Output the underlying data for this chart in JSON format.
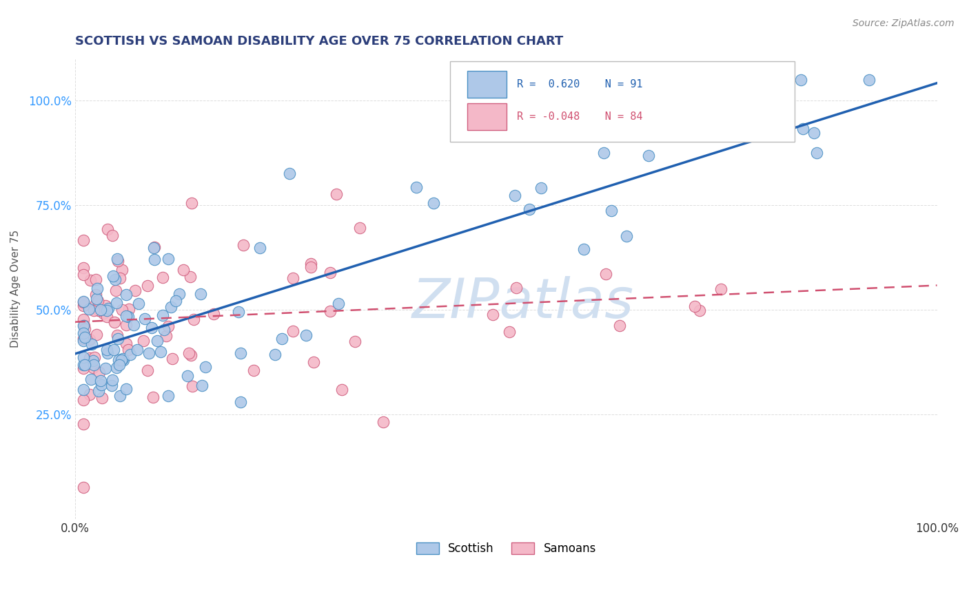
{
  "title": "SCOTTISH VS SAMOAN DISABILITY AGE OVER 75 CORRELATION CHART",
  "source": "Source: ZipAtlas.com",
  "ylabel": "Disability Age Over 75",
  "R_scottish": 0.62,
  "N_scottish": 91,
  "R_samoan": -0.048,
  "N_samoan": 84,
  "scottish_color": "#aec8e8",
  "scottish_edge": "#4a90c4",
  "samoan_color": "#f4b8c8",
  "samoan_edge": "#d06080",
  "line_scottish_color": "#2060b0",
  "line_samoan_color": "#d05070",
  "watermark": "ZIPatlas",
  "watermark_color": "#d0dff0",
  "title_color": "#2c3e7a",
  "source_color": "#888888",
  "ytick_color": "#3399ff",
  "xtick_color": "#333333",
  "grid_color": "#dddddd",
  "legend_box_color": "#dddddd",
  "legend_box_bg": "#ffffff"
}
